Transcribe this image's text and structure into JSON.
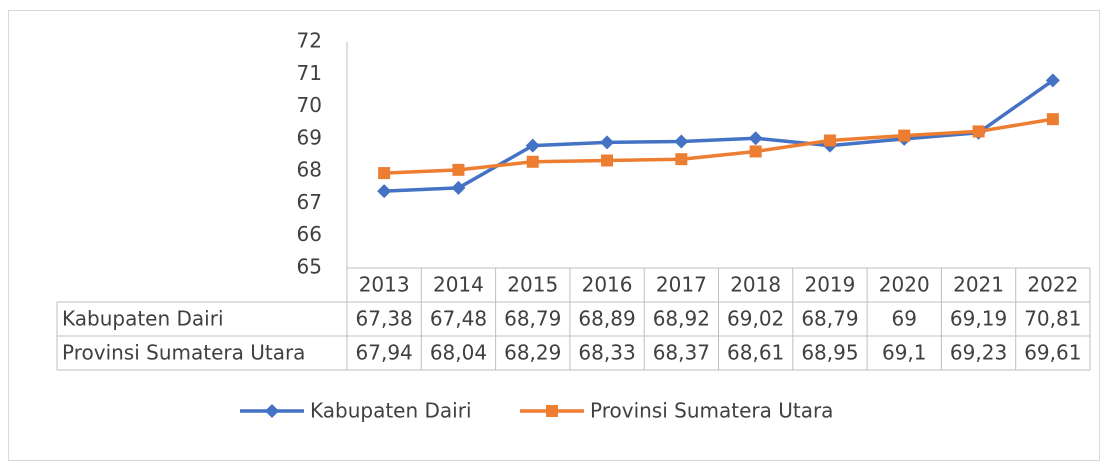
{
  "chart_data": {
    "type": "line",
    "categories": [
      "2013",
      "2014",
      "2015",
      "2016",
      "2017",
      "2018",
      "2019",
      "2020",
      "2021",
      "2022"
    ],
    "series": [
      {
        "name": "Kabupaten Dairi",
        "color": "#4472c4",
        "marker": "diamond",
        "values": [
          67.38,
          67.48,
          68.79,
          68.89,
          68.92,
          69.02,
          68.79,
          69,
          69.19,
          70.81
        ],
        "value_labels": [
          "67,38",
          "67,48",
          "68,79",
          "68,89",
          "68,92",
          "69,02",
          "68,79",
          "69",
          "69,19",
          "70,81"
        ]
      },
      {
        "name": "Provinsi Sumatera Utara",
        "color": "#ed7d31",
        "marker": "square",
        "values": [
          67.94,
          68.04,
          68.29,
          68.33,
          68.37,
          68.61,
          68.95,
          69.1,
          69.23,
          69.61
        ],
        "value_labels": [
          "67,94",
          "68,04",
          "68,29",
          "68,33",
          "68,37",
          "68,61",
          "68,95",
          "69,1",
          "69,23",
          "69,61"
        ]
      }
    ],
    "ylim": [
      65,
      72
    ],
    "yticks": [
      65,
      66,
      67,
      68,
      69,
      70,
      71,
      72
    ],
    "grid": false,
    "data_table": true,
    "legend": "bottom"
  }
}
